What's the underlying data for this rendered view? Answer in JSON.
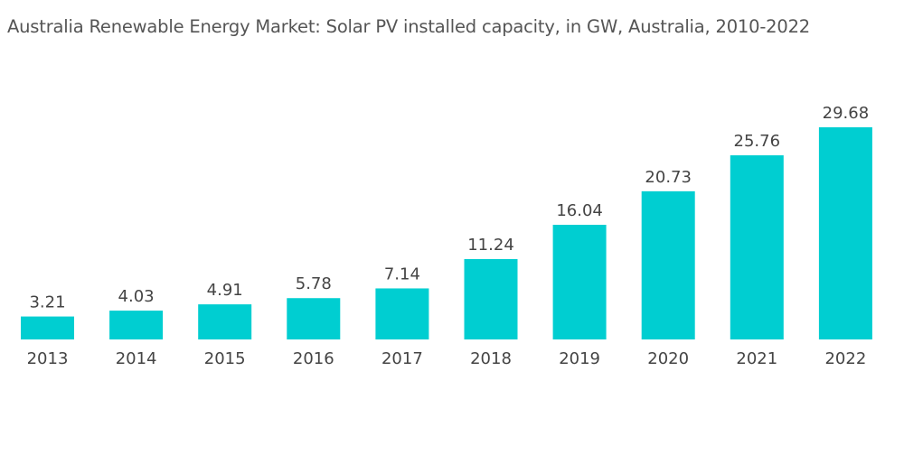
{
  "chart_data": {
    "type": "bar",
    "title": "Australia Renewable Energy Market: Solar PV installed capacity, in GW, Australia, 2010-2022",
    "categories": [
      "2013",
      "2014",
      "2015",
      "2016",
      "2017",
      "2018",
      "2019",
      "2020",
      "2021",
      "2022"
    ],
    "values": [
      3.21,
      4.03,
      4.91,
      5.78,
      7.14,
      11.24,
      16.04,
      20.73,
      25.76,
      29.68
    ],
    "data_labels": [
      "3.21",
      "4.03",
      "4.91",
      "5.78",
      "7.14",
      "11.24",
      "16.04",
      "20.73",
      "25.76",
      "29.68"
    ],
    "xlabel": "",
    "ylabel": "",
    "ylim": [
      0,
      29.68
    ],
    "grid": false,
    "y_axis_visible": false,
    "bar_color": "#00CED1",
    "text_color": "#444444"
  }
}
